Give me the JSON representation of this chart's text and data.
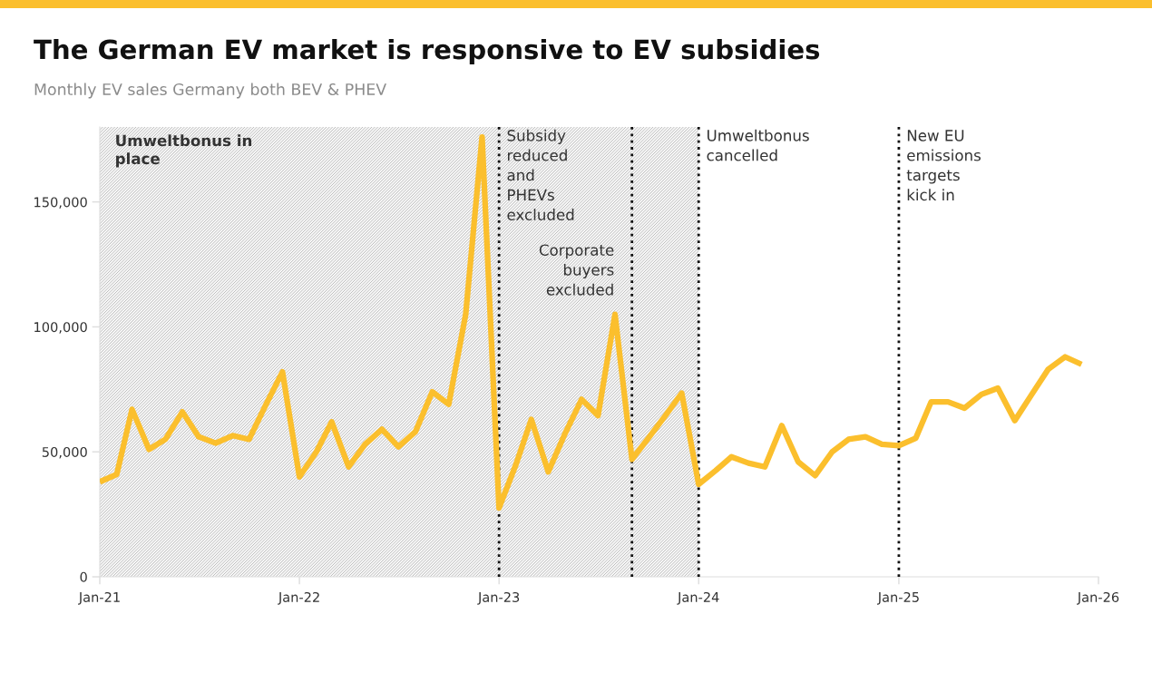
{
  "chart_data": {
    "type": "line",
    "title": "The German EV market is responsive to EV subsidies",
    "subtitle": "Monthly EV sales Germany both BEV & PHEV",
    "x": [
      "2021-01",
      "2021-02",
      "2021-03",
      "2021-04",
      "2021-05",
      "2021-06",
      "2021-07",
      "2021-08",
      "2021-09",
      "2021-10",
      "2021-11",
      "2021-12",
      "2022-01",
      "2022-02",
      "2022-03",
      "2022-04",
      "2022-05",
      "2022-06",
      "2022-07",
      "2022-08",
      "2022-09",
      "2022-10",
      "2022-11",
      "2022-12",
      "2023-01",
      "2023-02",
      "2023-03",
      "2023-04",
      "2023-05",
      "2023-06",
      "2023-07",
      "2023-08",
      "2023-09",
      "2023-10",
      "2023-11",
      "2023-12",
      "2024-01",
      "2024-02",
      "2024-03",
      "2024-04",
      "2024-05",
      "2024-06",
      "2024-07",
      "2024-08",
      "2024-09",
      "2024-10",
      "2024-11",
      "2024-12",
      "2025-01",
      "2025-02",
      "2025-03",
      "2025-04",
      "2025-05",
      "2025-06",
      "2025-07",
      "2025-08",
      "2025-09",
      "2025-10",
      "2025-11",
      "2025-12"
    ],
    "series": [
      {
        "color": "#fbbf2d",
        "values": [
          38000,
          41000,
          67000,
          51000,
          55000,
          66000,
          56000,
          53500,
          56500,
          55000,
          69000,
          82000,
          40000,
          50000,
          62000,
          44000,
          53000,
          59000,
          52000,
          58000,
          74000,
          69000,
          105000,
          176000,
          27500,
          45000,
          63000,
          42000,
          57000,
          71000,
          64500,
          105000,
          47000,
          55500,
          64500,
          73500,
          37000,
          42500,
          48000,
          45500,
          44000,
          60500,
          46000,
          40500,
          50000,
          55000,
          56000,
          53000,
          52500,
          55500,
          70000,
          70000,
          67500,
          73000,
          75500,
          62500,
          73000,
          83000,
          88000,
          85000
        ]
      }
    ],
    "xlim": [
      "2021-01",
      "2026-01"
    ],
    "xticks": [
      {
        "value": "2021-01",
        "label": "Jan-21"
      },
      {
        "value": "2022-01",
        "label": "Jan-22"
      },
      {
        "value": "2023-01",
        "label": "Jan-23"
      },
      {
        "value": "2024-01",
        "label": "Jan-24"
      },
      {
        "value": "2025-01",
        "label": "Jan-25"
      },
      {
        "value": "2026-01",
        "label": "Jan-26"
      }
    ],
    "ylim": [
      0,
      180000
    ],
    "yticks": [
      0,
      {
        "value": 50000,
        "label": "50,000"
      },
      {
        "value": 100000,
        "label": "100,000"
      },
      {
        "value": 150000,
        "label": "150,000"
      }
    ],
    "bands": [
      {
        "axis": "x",
        "from": "2021-01",
        "to": "2024-01",
        "label": "Umweltbonus in\nplace",
        "color": "#bdbdbd"
      }
    ],
    "ref_lines": [
      {
        "axis": "x",
        "value": "2023-01",
        "label": "Subsidy\nreduced\nand\nPHEVs\nexcluded",
        "color": "#111111",
        "line_style": "dotted"
      },
      {
        "axis": "x",
        "value": "2023-09",
        "label": "Corporate\nbuyers\nexcluded",
        "color": "#111111",
        "line_style": "dotted"
      },
      {
        "axis": "x",
        "value": "2024-01",
        "label": "Umweltbonus\ncancelled",
        "color": "#111111",
        "line_style": "dotted"
      },
      {
        "axis": "x",
        "value": "2025-01",
        "label": "New EU\nemissions\ntargets\nkick in",
        "color": "#111111",
        "line_style": "dotted"
      }
    ]
  }
}
